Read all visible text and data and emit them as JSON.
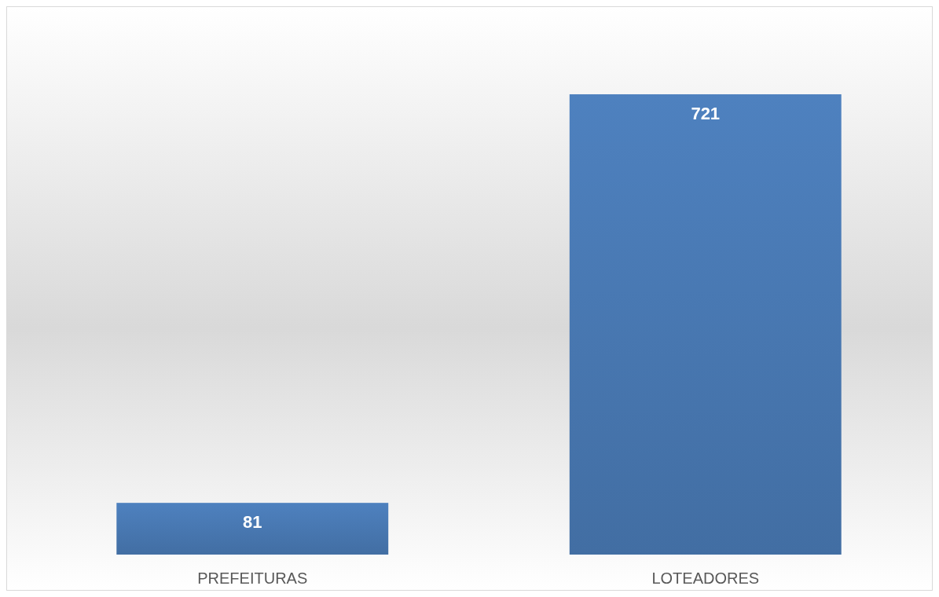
{
  "chart_data": {
    "type": "bar",
    "categories": [
      "PREFEITURAS",
      "LOTEADORES"
    ],
    "values": [
      81,
      721
    ],
    "color": "#4a7ab5",
    "data_labels": true
  }
}
